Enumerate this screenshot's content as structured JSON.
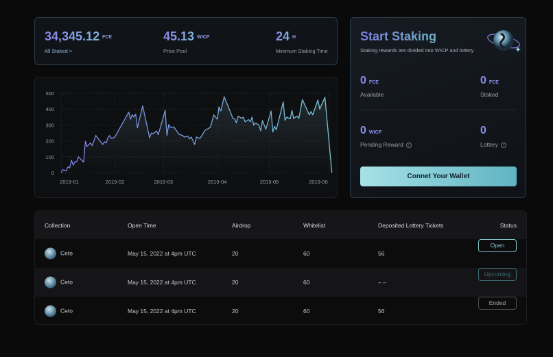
{
  "stats": [
    {
      "value": "34,345.12",
      "unit": "FCE",
      "label": "All Staked >"
    },
    {
      "value": "45.13",
      "unit": "WICP",
      "label": "Price Pool"
    },
    {
      "value": "24",
      "unit": "H",
      "label": "Minimum Staking Time"
    }
  ],
  "staking": {
    "title": "Start Staking",
    "subtitle": "Staking rewards are divided into WICP and lottery",
    "available": {
      "value": "0",
      "unit": "FCE",
      "label": "Available"
    },
    "staked": {
      "value": "0",
      "unit": "FCE",
      "label": "Staked"
    },
    "pending": {
      "value": "0",
      "unit": "WICP",
      "label": "Pending Reward"
    },
    "lottery": {
      "value": "0",
      "label": "Lottery"
    },
    "button": "Connet Your Wallet"
  },
  "table": {
    "headers": [
      "Collection",
      "Open Time",
      "Airdrop",
      "Whitelist",
      "Deposited Lottery Tickets",
      "Status"
    ],
    "rows": [
      {
        "collection": "Ceto",
        "open_time": "May 15, 2022 at 4pm UTC",
        "airdrop": "20",
        "whitelist": "60",
        "tickets": "56",
        "status": "Open"
      },
      {
        "collection": "Ceto",
        "open_time": "May 15, 2022 at 4pm UTC",
        "airdrop": "20",
        "whitelist": "60",
        "tickets": "– –",
        "status": "Upcoming"
      },
      {
        "collection": "Ceto",
        "open_time": "May 15, 2022 at 4pm UTC",
        "airdrop": "20",
        "whitelist": "60",
        "tickets": "56",
        "status": "Ended"
      }
    ]
  },
  "colors": {
    "accent_purple": "#8a8ff0",
    "accent_teal": "#6fb2c4",
    "status_open": "#7fc4cc",
    "status_upcoming": "#3f6e74",
    "status_ended": "#a0a4aa"
  },
  "chart_data": {
    "type": "area",
    "ylim": [
      0,
      500
    ],
    "yticks": [
      "0",
      "100",
      "200",
      "300",
      "400",
      "500"
    ],
    "xticks": [
      "2019-01",
      "2019-02",
      "2019-03",
      "2019-04",
      "2019-05",
      "2019-06"
    ],
    "grid": true,
    "x": [
      "2019-01-01",
      "2019-01-02",
      "2019-01-04",
      "2019-01-05",
      "2019-01-06",
      "2019-01-07",
      "2019-01-08",
      "2019-01-09",
      "2019-01-10",
      "2019-01-11",
      "2019-01-14",
      "2019-01-15",
      "2019-01-16",
      "2019-01-18",
      "2019-01-19",
      "2019-01-21",
      "2019-01-25",
      "2019-01-26",
      "2019-01-27",
      "2019-01-28",
      "2019-01-29",
      "2019-01-30",
      "2019-02-01",
      "2019-02-09",
      "2019-02-10",
      "2019-02-11",
      "2019-02-12",
      "2019-02-13",
      "2019-02-14",
      "2019-02-17",
      "2019-02-21",
      "2019-02-22",
      "2019-02-23",
      "2019-02-25",
      "2019-02-26",
      "2019-03-02",
      "2019-03-03",
      "2019-03-04",
      "2019-03-05",
      "2019-03-07",
      "2019-03-10",
      "2019-03-12",
      "2019-03-13",
      "2019-03-15",
      "2019-03-16",
      "2019-03-17",
      "2019-03-19",
      "2019-03-20",
      "2019-03-22",
      "2019-03-25",
      "2019-03-28",
      "2019-03-30",
      "2019-04-01",
      "2019-04-02",
      "2019-04-03",
      "2019-04-05",
      "2019-04-10",
      "2019-04-11",
      "2019-04-12",
      "2019-04-13",
      "2019-04-15",
      "2019-04-16",
      "2019-04-17",
      "2019-04-19",
      "2019-04-20",
      "2019-04-21",
      "2019-04-22",
      "2019-04-23",
      "2019-04-25",
      "2019-04-26",
      "2019-04-27",
      "2019-04-29",
      "2019-05-02",
      "2019-05-03",
      "2019-05-04",
      "2019-05-05",
      "2019-05-09",
      "2019-05-10",
      "2019-05-11",
      "2019-05-13",
      "2019-05-14",
      "2019-05-15",
      "2019-05-17",
      "2019-05-18",
      "2019-05-20",
      "2019-05-24",
      "2019-05-25",
      "2019-05-26",
      "2019-05-29",
      "2019-05-30",
      "2019-06-02",
      "2019-06-06"
    ],
    "y": [
      0,
      19,
      12,
      37,
      30,
      79,
      47,
      69,
      69,
      100,
      66,
      198,
      165,
      187,
      170,
      234,
      177,
      195,
      187,
      220,
      234,
      215,
      224,
      381,
      336,
      365,
      350,
      368,
      282,
      421,
      220,
      250,
      245,
      263,
      239,
      392,
      234,
      302,
      285,
      287,
      241,
      234,
      224,
      230,
      213,
      224,
      177,
      224,
      215,
      267,
      285,
      364,
      336,
      414,
      388,
      478,
      342,
      339,
      313,
      356,
      342,
      349,
      320,
      334,
      320,
      349,
      299,
      313,
      299,
      263,
      328,
      273,
      388,
      256,
      292,
      270,
      445,
      330,
      349,
      339,
      392,
      342,
      356,
      342,
      460,
      364,
      385,
      364,
      457,
      400,
      474,
      0
    ]
  }
}
